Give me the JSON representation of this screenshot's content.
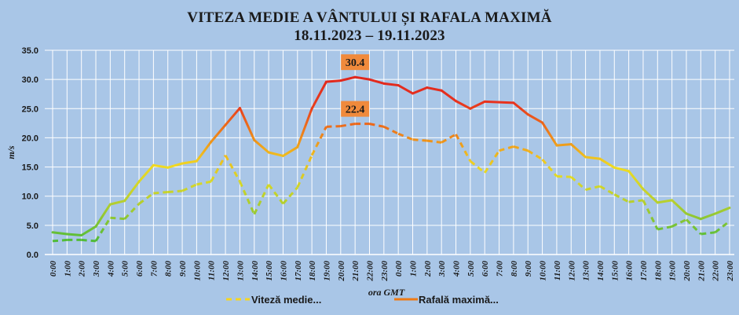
{
  "chart_data": {
    "type": "line",
    "title": "VITEZA MEDIE A VÂNTULUI ȘI RAFALA MAXIMĂ",
    "subtitle": "18.11.2023 – 19.11.2023",
    "xlabel": "ora GMT",
    "ylabel": "m/s",
    "ylim": [
      0,
      35
    ],
    "yticks": [
      "0.0",
      "5.0",
      "10.0",
      "15.0",
      "20.0",
      "25.0",
      "30.0",
      "35.0"
    ],
    "categories": [
      "0:00",
      "1:00",
      "2:00",
      "3:00",
      "4:00",
      "5:00",
      "6:00",
      "7:00",
      "8:00",
      "9:00",
      "10:00",
      "11:00",
      "12:00",
      "13:00",
      "14:00",
      "15:00",
      "16:00",
      "17:00",
      "18:00",
      "19:00",
      "20:00",
      "21:00",
      "22:00",
      "23:00",
      "0:00",
      "1:00",
      "2:00",
      "3:00",
      "4:00",
      "5:00",
      "6:00",
      "7:00",
      "8:00",
      "9:00",
      "10:00",
      "11:00",
      "12:00",
      "13:00",
      "14:00",
      "15:00",
      "16:00",
      "17:00",
      "18:00",
      "19:00",
      "20:00",
      "21:00",
      "22:00",
      "23:00"
    ],
    "grid": true,
    "legend_position": "bottom",
    "series": [
      {
        "name": "Viteză medie...",
        "style": "dashed",
        "values": [
          2.3,
          2.5,
          2.5,
          2.3,
          6.3,
          6.1,
          8.7,
          10.5,
          10.7,
          10.9,
          12.0,
          12.5,
          17.0,
          12.5,
          6.9,
          12.0,
          8.7,
          11.5,
          17.0,
          21.9,
          22.0,
          22.4,
          22.4,
          21.9,
          20.7,
          19.7,
          19.5,
          19.2,
          20.6,
          16.0,
          14.0,
          17.8,
          18.5,
          17.8,
          16.3,
          13.4,
          13.3,
          11.1,
          11.7,
          10.3,
          9.0,
          9.3,
          4.3,
          4.8,
          6.0,
          3.5,
          3.8,
          5.7
        ]
      },
      {
        "name": "Rafală maximă...",
        "style": "solid",
        "values": [
          3.8,
          3.5,
          3.3,
          4.8,
          8.6,
          9.2,
          12.5,
          15.3,
          14.9,
          15.6,
          16.0,
          19.3,
          22.2,
          25.1,
          19.6,
          17.5,
          16.9,
          18.4,
          25.0,
          29.6,
          29.8,
          30.4,
          30.0,
          29.3,
          29.0,
          27.6,
          28.6,
          28.1,
          26.3,
          25.0,
          26.2,
          26.1,
          26.0,
          24.0,
          22.6,
          18.7,
          18.9,
          16.7,
          16.4,
          14.9,
          14.3,
          11.2,
          8.9,
          9.3,
          7.0,
          6.1,
          7.0,
          8.0
        ]
      }
    ],
    "annotations": [
      {
        "text": "30.4",
        "series": 1,
        "index": 21
      },
      {
        "text": "22.4",
        "series": 0,
        "index": 21
      }
    ],
    "colors": {
      "background": "#a9c6e7",
      "grid": "#ffffff",
      "legend_mean": "#f6d622",
      "legend_gust": "#ee7a14",
      "callout": "#f08a3c"
    }
  }
}
